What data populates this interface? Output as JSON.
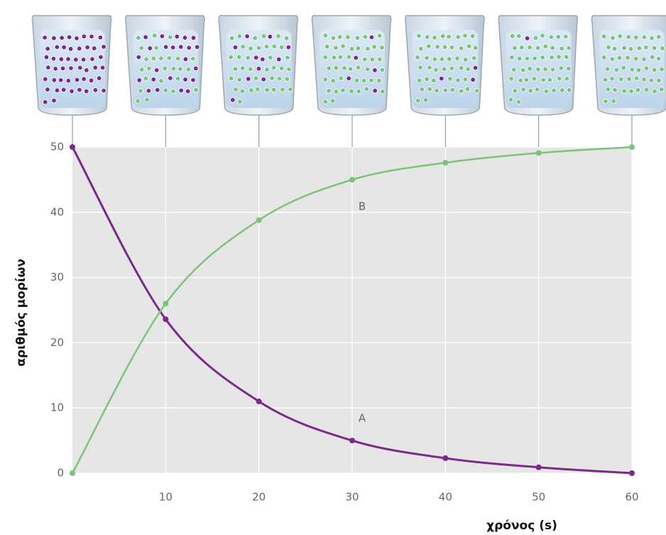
{
  "chart_data": {
    "type": "line",
    "x_label": "χρόνος (s)",
    "y_label": "αριθμός μορίων",
    "x": [
      0,
      10,
      20,
      30,
      40,
      50,
      60
    ],
    "series": [
      {
        "name": "A",
        "color": "#7b2a8c",
        "values": [
          50,
          23.6,
          11,
          5,
          2.3,
          0.9,
          0
        ]
      },
      {
        "name": "B",
        "color": "#7cc47a",
        "values": [
          0,
          26,
          38.8,
          45,
          47.6,
          49.1,
          50
        ]
      }
    ],
    "xlim": [
      0,
      60
    ],
    "xticks": [
      10,
      20,
      30,
      40,
      50,
      60
    ],
    "ylim": [
      0,
      50
    ],
    "yticks": [
      0,
      10,
      20,
      30,
      40,
      50
    ],
    "grid": true
  }
}
